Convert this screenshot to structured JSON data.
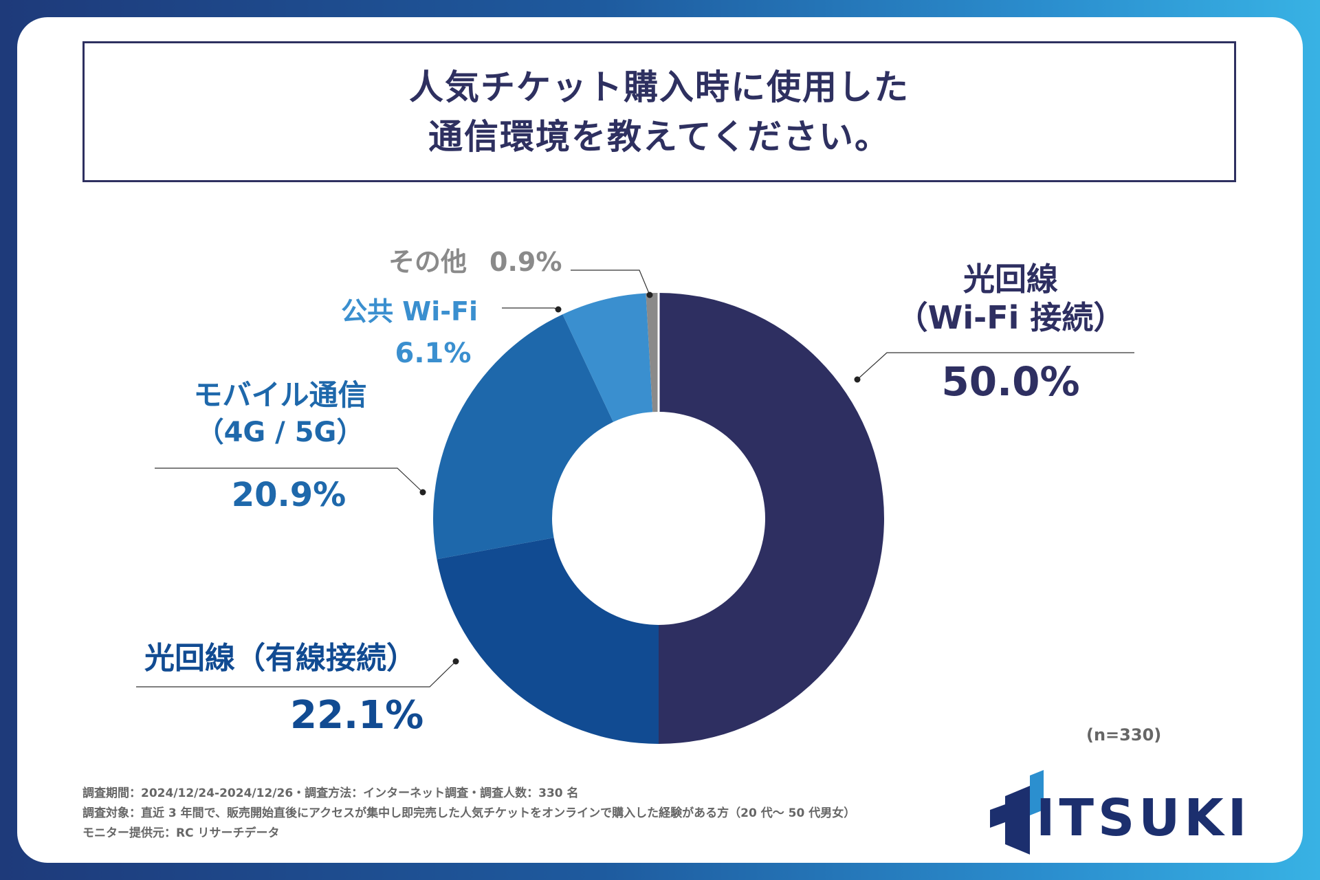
{
  "title": {
    "line1": "人気チケット購入時に使用した",
    "line2": "通信環境を教えてください。"
  },
  "chart_data": {
    "type": "pie",
    "donut": true,
    "slices": [
      {
        "label_line1": "光回線",
        "label_line2": "（Wi-Fi 接続）",
        "value": 50.0,
        "value_text": "50.0%",
        "color": "#2e2f61"
      },
      {
        "label_line1": "光回線（有線接続）",
        "label_line2": "",
        "value": 22.1,
        "value_text": "22.1%",
        "color": "#114b92"
      },
      {
        "label_line1": "モバイル通信",
        "label_line2": "（4G / 5G）",
        "value": 20.9,
        "value_text": "20.9%",
        "color": "#1e68ab"
      },
      {
        "label_line1": "公共 Wi-Fi",
        "label_line2": "",
        "value": 6.1,
        "value_text": "6.1%",
        "color": "#3a8fcf"
      },
      {
        "label_line1": "その他",
        "label_line2": "",
        "value": 0.9,
        "value_text": "0.9%",
        "color": "#8a8a8a"
      }
    ],
    "sample_note": "(n=330)"
  },
  "notes": {
    "line1": "調査期間：2024/12/24-2024/12/26・調査方法：インターネット調査・調査人数：330 名",
    "line2": "調査対象：直近 3 年間で、販売開始直後にアクセスが集中し即完売した人気チケットをオンラインで購入した経験がある方（20 代～ 50 代男女）",
    "line3": "モニター提供元：RC リサーチデータ"
  },
  "logo": {
    "text": "ITSUKI",
    "colors": {
      "dark": "#1c2f6e",
      "light": "#2b8fcf"
    }
  }
}
